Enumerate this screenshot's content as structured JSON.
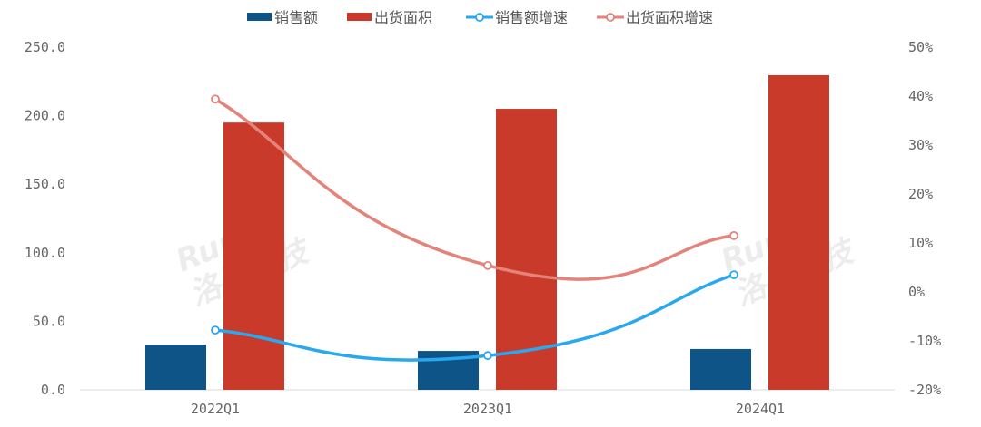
{
  "chart_data": {
    "type": "bar+line",
    "categories": [
      "2022Q1",
      "2023Q1",
      "2024Q1"
    ],
    "series": [
      {
        "name": "销售额",
        "type": "bar",
        "axis": "left",
        "color": "#0f5487",
        "values": [
          33.0,
          28.4,
          29.8
        ]
      },
      {
        "name": "出货面积",
        "type": "bar",
        "axis": "left",
        "color": "#c93a2a",
        "values": [
          195.0,
          205.0,
          229.5
        ]
      },
      {
        "name": "销售额增速",
        "type": "line",
        "axis": "right",
        "color": "#29a8f0",
        "values": [
          -7.8,
          -13.0,
          3.5
        ],
        "unit": "%"
      },
      {
        "name": "出货面积增速",
        "type": "line",
        "axis": "right",
        "color": "#e3837a",
        "values": [
          39.4,
          5.4,
          11.5
        ],
        "unit": "%"
      }
    ],
    "left_axis": {
      "range": [
        0,
        250
      ],
      "ticks": [
        "0.0",
        "50.0",
        "100.0",
        "150.0",
        "200.0",
        "250.0"
      ]
    },
    "right_axis": {
      "range": [
        -20,
        50
      ],
      "ticks": [
        "-20%",
        "-10%",
        "0%",
        "10%",
        "20%",
        "30%",
        "40%",
        "50%"
      ]
    },
    "legend_position": "top",
    "grid": false
  },
  "watermark": [
    "Runto",
    "洛图科技"
  ]
}
